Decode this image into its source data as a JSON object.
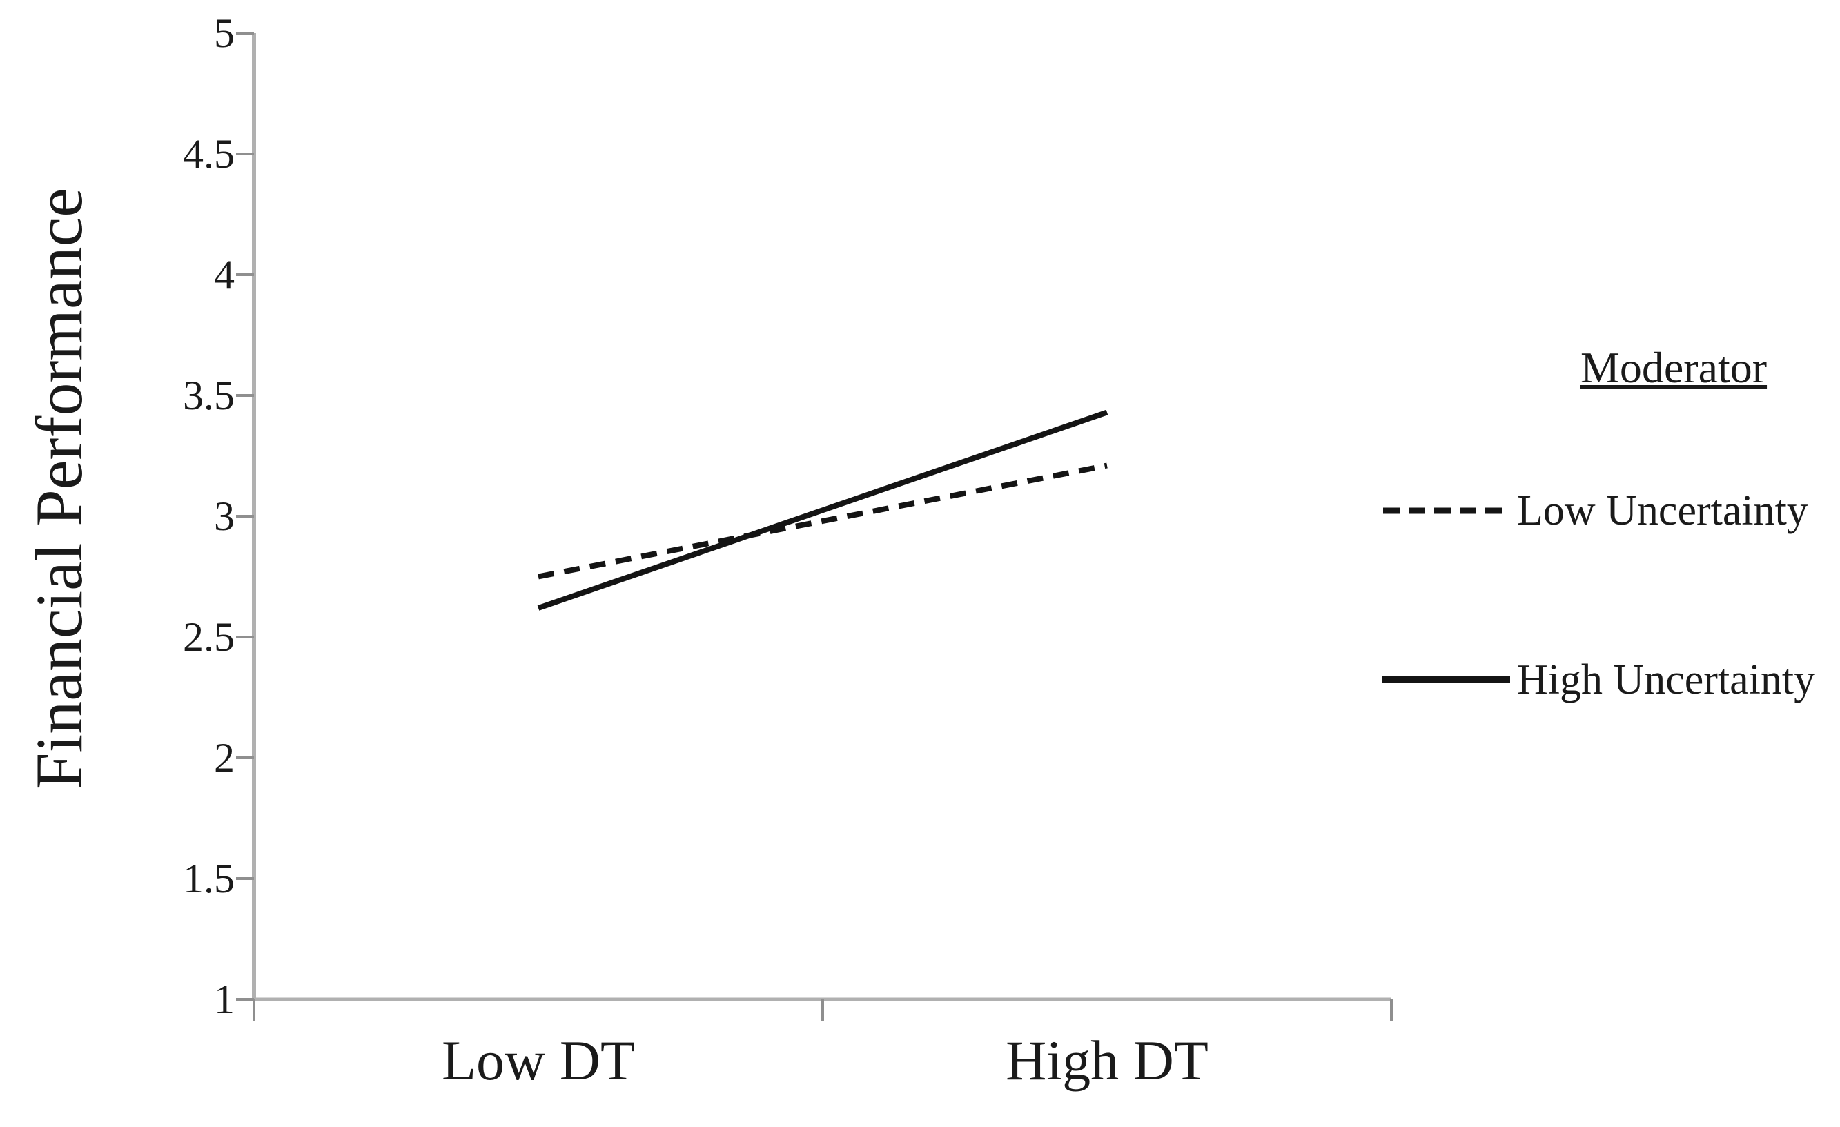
{
  "chart_data": {
    "type": "line",
    "title": "",
    "xlabel": "",
    "ylabel": "Financial Performance",
    "categories": [
      "Low DT",
      "High DT"
    ],
    "series": [
      {
        "name": "Low Uncertainty",
        "style": "dashed",
        "values": [
          2.75,
          3.21
        ]
      },
      {
        "name": "High Uncertainty",
        "style": "solid",
        "values": [
          2.62,
          3.43
        ]
      }
    ],
    "ylim": [
      1,
      5
    ],
    "ytick_step": 0.5,
    "yticks": [
      "1",
      "1.5",
      "2",
      "2.5",
      "3",
      "3.5",
      "4",
      "4.5",
      "5"
    ],
    "grid": false,
    "legend_position": "right"
  },
  "legend": {
    "title": "Moderator",
    "items": [
      {
        "label": "Low Uncertainty",
        "style": "dashed"
      },
      {
        "label": "High Uncertainty",
        "style": "solid"
      }
    ]
  },
  "colors": {
    "line": "#141414",
    "axis": "#b0b0b0",
    "tick": "#8f8f8f",
    "text": "#1a1a1a"
  }
}
